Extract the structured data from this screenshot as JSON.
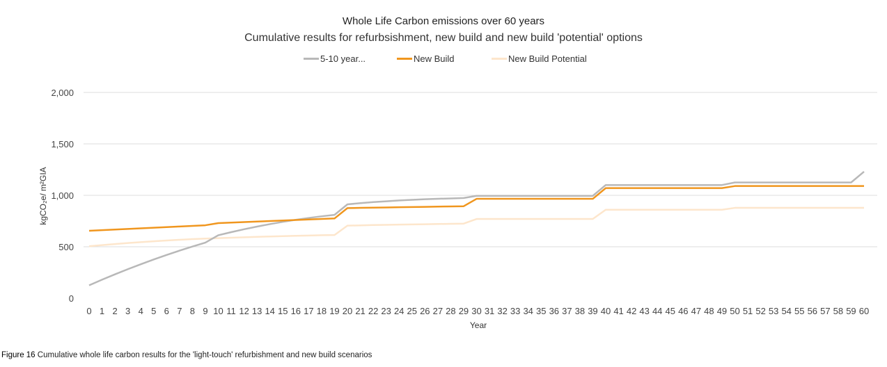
{
  "chart_data": {
    "type": "line",
    "title": "Whole Life Carbon emissions over 60 years",
    "subtitle": "Cumulative results for refurbsishment, new build and new build 'potential' options",
    "xlabel": "Year",
    "ylabel": "kgCO₂e/ m²GIA",
    "ylim": [
      0,
      2000
    ],
    "yticks": [
      "0",
      "500",
      "1,000",
      "1,500",
      "2,000"
    ],
    "grid": "horizontal",
    "legend_position": "top",
    "x": [
      0,
      1,
      2,
      3,
      4,
      5,
      6,
      7,
      8,
      9,
      10,
      11,
      12,
      13,
      14,
      15,
      16,
      17,
      18,
      19,
      20,
      21,
      22,
      23,
      24,
      25,
      26,
      27,
      28,
      29,
      30,
      31,
      32,
      33,
      34,
      35,
      36,
      37,
      38,
      39,
      40,
      41,
      42,
      43,
      44,
      45,
      46,
      47,
      48,
      49,
      50,
      51,
      52,
      53,
      54,
      55,
      56,
      57,
      58,
      59,
      60
    ],
    "series": [
      {
        "name": "5-10 year...",
        "color": "#b8b8b8",
        "values": [
          125,
          180,
          232,
          282,
          330,
          376,
          420,
          462,
          502,
          540,
          612,
          642,
          670,
          696,
          720,
          742,
          762,
          780,
          796,
          810,
          912,
          924,
          934,
          942,
          950,
          956,
          962,
          966,
          970,
          974,
          995,
          995,
          995,
          995,
          995,
          995,
          995,
          995,
          995,
          995,
          1100,
          1100,
          1100,
          1100,
          1100,
          1100,
          1100,
          1100,
          1100,
          1100,
          1125,
          1125,
          1125,
          1125,
          1125,
          1125,
          1125,
          1125,
          1125,
          1125,
          1230
        ]
      },
      {
        "name": "New Build",
        "color": "#f0961e",
        "values": [
          655,
          661,
          667,
          673,
          679,
          685,
          691,
          697,
          703,
          709,
          730,
          735,
          740,
          745,
          750,
          755,
          760,
          765,
          770,
          775,
          876,
          878,
          880,
          882,
          884,
          886,
          888,
          890,
          892,
          894,
          966,
          966,
          966,
          966,
          966,
          966,
          966,
          966,
          966,
          966,
          1070,
          1070,
          1070,
          1070,
          1070,
          1070,
          1070,
          1070,
          1070,
          1070,
          1090,
          1090,
          1090,
          1090,
          1090,
          1090,
          1090,
          1090,
          1090,
          1090,
          1090
        ]
      },
      {
        "name": "New Build Potential",
        "color": "#fde6cc",
        "values": [
          505,
          516,
          526,
          536,
          545,
          553,
          561,
          568,
          574,
          579,
          584,
          588,
          592,
          596,
          600,
          603,
          606,
          609,
          612,
          614,
          705,
          708,
          711,
          713,
          715,
          717,
          719,
          721,
          723,
          725,
          770,
          770,
          770,
          770,
          770,
          770,
          770,
          770,
          770,
          770,
          860,
          860,
          860,
          860,
          860,
          860,
          860,
          860,
          860,
          860,
          878,
          878,
          878,
          878,
          878,
          878,
          878,
          878,
          878,
          878,
          878
        ]
      }
    ]
  },
  "caption": {
    "figure_label": "Figure 16",
    "text": " Cumulative whole life carbon results for the 'light-touch' refurbishment and new build scenarios"
  }
}
